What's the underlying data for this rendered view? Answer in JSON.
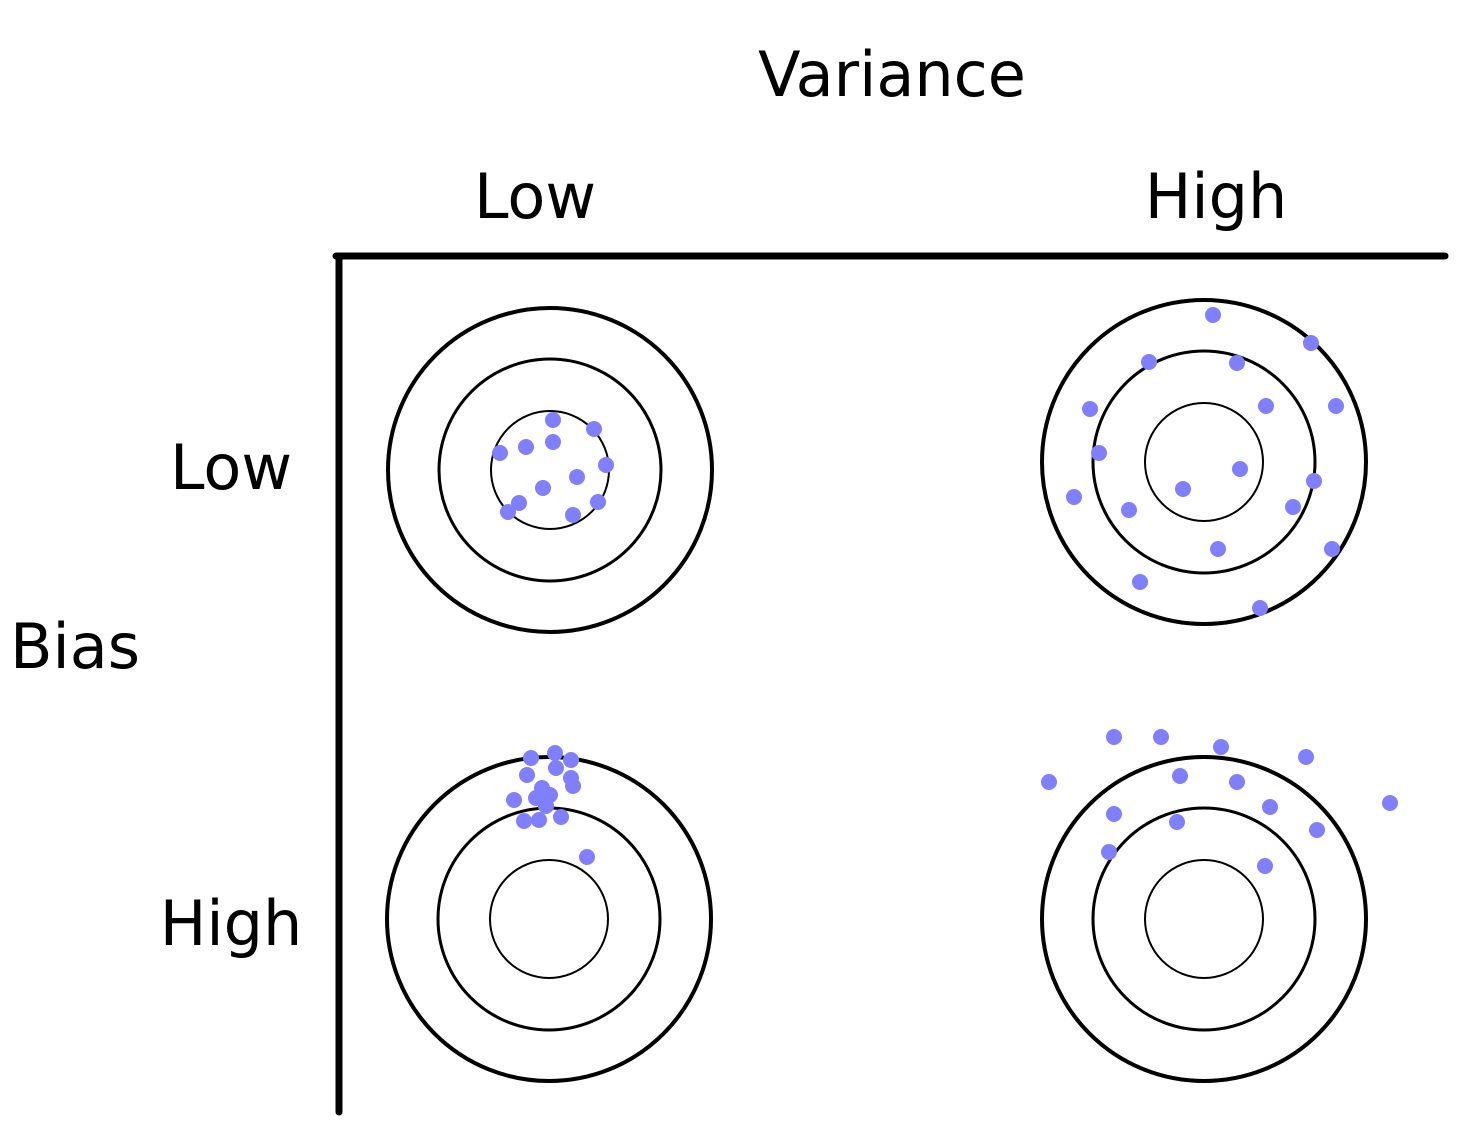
{
  "header": {
    "title": "Variance",
    "columns": [
      "Low",
      "High"
    ]
  },
  "side": {
    "title": "Bias",
    "rows": [
      "Low",
      "High"
    ]
  },
  "colors": {
    "dot": "#8080ff",
    "ring": "#000000"
  },
  "targets": [
    {
      "name": "low-bias-low-variance",
      "row": 0,
      "col": 0
    },
    {
      "name": "low-bias-high-variance",
      "row": 0,
      "col": 1
    },
    {
      "name": "high-bias-low-variance",
      "row": 1,
      "col": 0
    },
    {
      "name": "high-bias-high-variance",
      "row": 1,
      "col": 1
    }
  ]
}
